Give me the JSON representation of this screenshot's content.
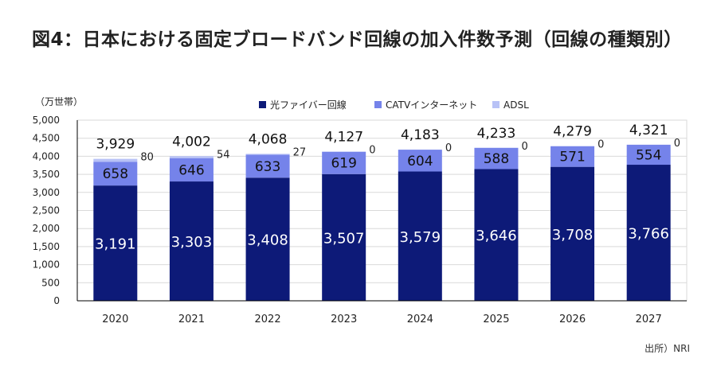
{
  "title": "図4：日本における固定ブロードバンド回線の加入件数予測（回線の種類別）",
  "source": "出所）NRI",
  "colors": {
    "fiber": "#0d1a78",
    "catv": "#7583ea",
    "adsl": "#b8c2f6",
    "grid": "#d9d9d9",
    "axis": "#000000"
  },
  "chart_data": {
    "type": "bar",
    "stacked": true,
    "title": "",
    "ylabel": "（万世帯）",
    "xlabel": "",
    "ylim": [
      0,
      5000
    ],
    "yticks": [
      0,
      500,
      1000,
      1500,
      2000,
      2500,
      3000,
      3500,
      4000,
      4500,
      5000
    ],
    "ytick_labels": [
      "0",
      "500",
      "1,000",
      "1,500",
      "2,000",
      "2,500",
      "3,000",
      "3,500",
      "4,000",
      "4,500",
      "5,000"
    ],
    "grid": true,
    "legend_position": "top",
    "categories": [
      "2020",
      "2021",
      "2022",
      "2023",
      "2024",
      "2025",
      "2026",
      "2027"
    ],
    "series": [
      {
        "name": "光ファイバー回線",
        "color_key": "fiber",
        "values": [
          3191,
          3303,
          3408,
          3507,
          3579,
          3646,
          3708,
          3766
        ],
        "labels": [
          "3,191",
          "3,303",
          "3,408",
          "3,507",
          "3,579",
          "3,646",
          "3,708",
          "3,766"
        ]
      },
      {
        "name": "CATVインターネット",
        "color_key": "catv",
        "values": [
          658,
          646,
          633,
          619,
          604,
          588,
          571,
          554
        ],
        "labels": [
          "658",
          "646",
          "633",
          "619",
          "604",
          "588",
          "571",
          "554"
        ]
      },
      {
        "name": "ADSL",
        "color_key": "adsl",
        "values": [
          80,
          54,
          27,
          0,
          0,
          0,
          0,
          0
        ],
        "labels": [
          "80",
          "54",
          "27",
          "0",
          "0",
          "0",
          "0",
          "0"
        ]
      }
    ],
    "totals": [
      3929,
      4002,
      4068,
      4127,
      4183,
      4233,
      4279,
      4321
    ],
    "total_labels": [
      "3,929",
      "4,002",
      "4,068",
      "4,127",
      "4,183",
      "4,233",
      "4,279",
      "4,321"
    ]
  }
}
